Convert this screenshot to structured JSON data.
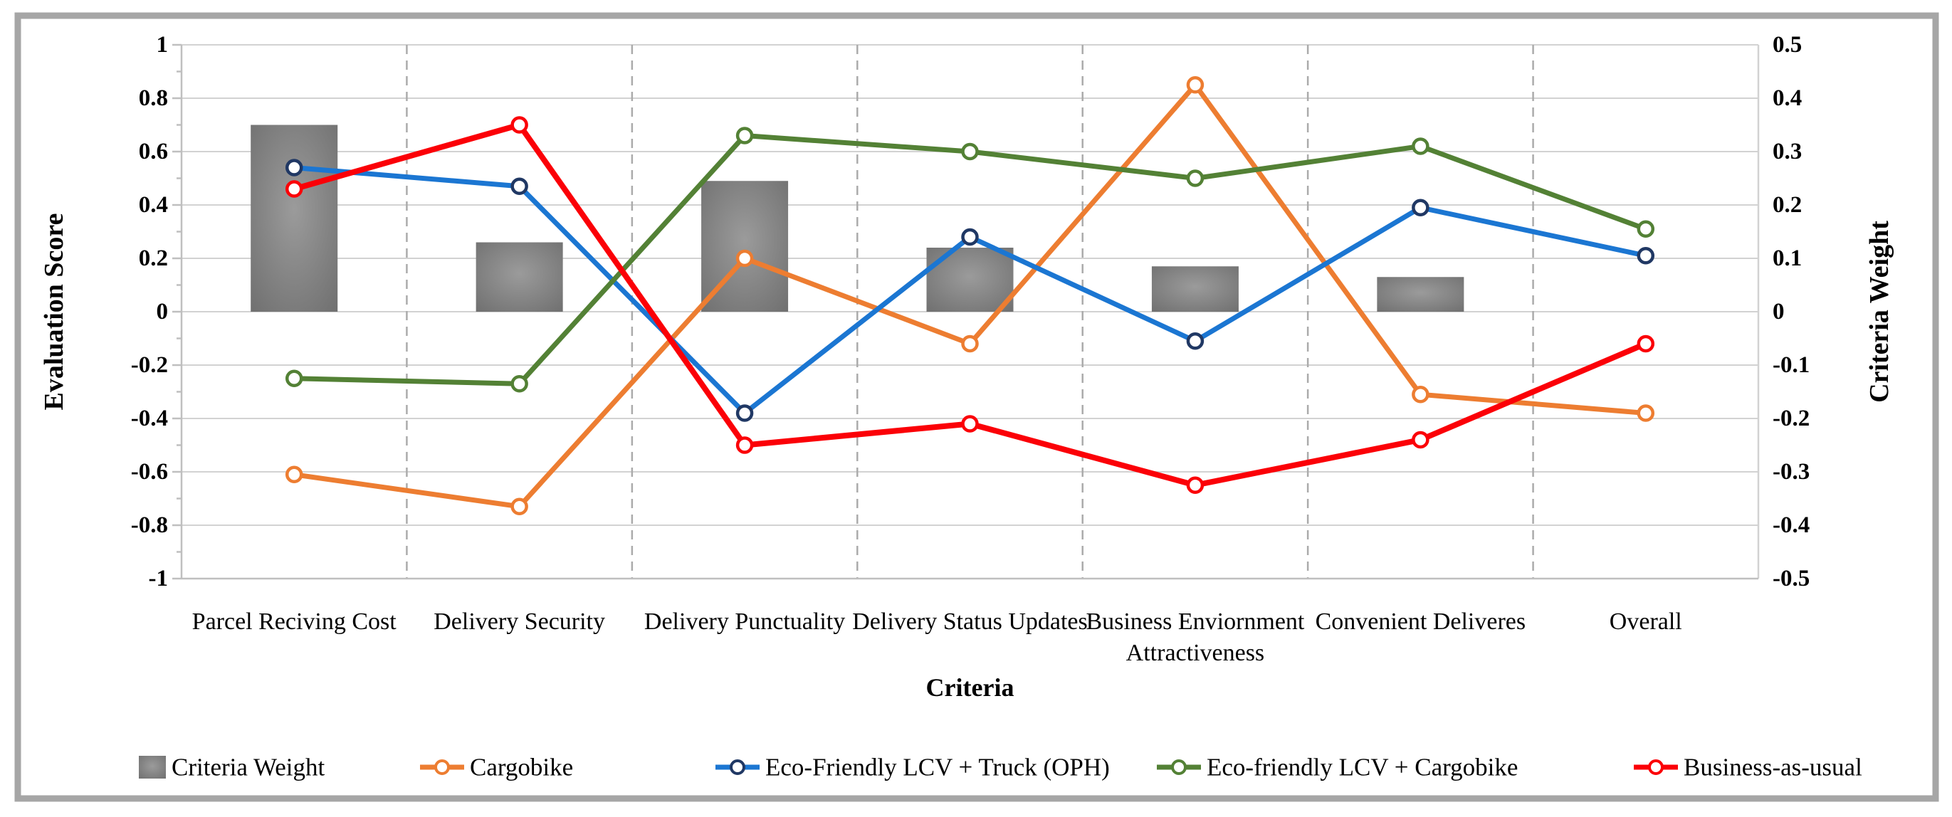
{
  "figure": {
    "border_color": "#A6A6A6",
    "background_color": "#FFFFFF",
    "gridline_color": "#D2D2D2",
    "axis_line_color": "#BFBFBF",
    "separator_color": "#ABABAB"
  },
  "chart_data": {
    "type": "combo bar + line",
    "title": "",
    "xlabel": "Criteria",
    "categories": [
      "Parcel Reciving Cost",
      "Delivery Security",
      "Delivery Punctuality",
      "Delivery Status Updates",
      "Business Enviornment Attractiveness",
      "Convenient Deliveres",
      "Overall"
    ],
    "category_label_lines": [
      [
        "Parcel Reciving Cost"
      ],
      [
        "Delivery Security"
      ],
      [
        "Delivery Punctuality"
      ],
      [
        "Delivery Status Updates"
      ],
      [
        "Business Enviornment",
        "Attractiveness"
      ],
      [
        "Convenient Deliveres"
      ],
      [
        "Overall"
      ]
    ],
    "left_axis": {
      "label": "Evaluation Score",
      "min": -1,
      "max": 1,
      "step": 0.2
    },
    "right_axis": {
      "label": "Criteria Weight",
      "min": -0.5,
      "max": 0.5,
      "step": 0.1
    },
    "grid": "horizontal solid gridlines, dashed vertical category separators",
    "legend_position": "bottom",
    "bar_series": {
      "name": "Criteria Weight",
      "axis": "right",
      "color": "#7F7F7F",
      "values": [
        0.35,
        0.13,
        0.245,
        0.12,
        0.085,
        0.065,
        null
      ]
    },
    "line_series": [
      {
        "name": "Cargobike",
        "color": "#ED7D31",
        "marker_edge": "#ED7D31",
        "axis": "left",
        "values": [
          -0.61,
          -0.73,
          0.2,
          -0.12,
          0.85,
          -0.31,
          -0.38
        ]
      },
      {
        "name": "Eco-Friendly LCV + Truck (OPH)",
        "color": "#1B76D2",
        "marker_edge": "#203864",
        "axis": "left",
        "values": [
          0.54,
          0.47,
          -0.38,
          0.28,
          -0.11,
          0.39,
          0.21
        ]
      },
      {
        "name": "Eco-friendly LCV + Cargobike",
        "color": "#538135",
        "marker_edge": "#538135",
        "axis": "left",
        "values": [
          -0.25,
          -0.27,
          0.66,
          0.6,
          0.5,
          0.62,
          0.31
        ]
      },
      {
        "name": "Business-as-usual",
        "color": "#FB0007",
        "marker_edge": "#FB0007",
        "axis": "left",
        "values": [
          0.46,
          0.7,
          -0.5,
          -0.42,
          -0.65,
          -0.48,
          -0.12
        ]
      }
    ]
  }
}
